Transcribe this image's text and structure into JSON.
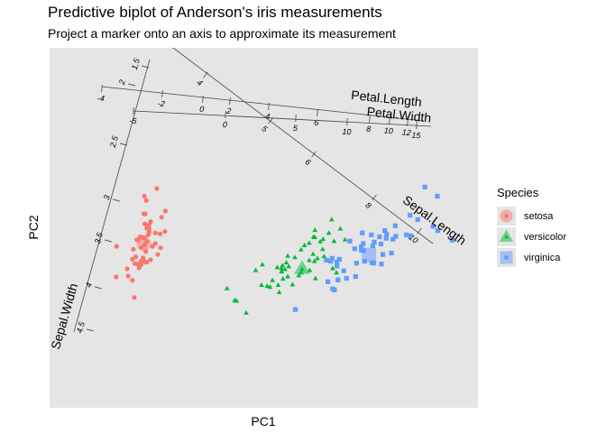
{
  "chart_data": {
    "type": "scatter",
    "title": "Predictive biplot of Anderson's iris measurements",
    "subtitle": "Project a marker onto an axis to approximate its measurement",
    "xlabel": "PC1",
    "ylabel": "PC2",
    "grid": false,
    "legend": {
      "title": "Species",
      "placement": "right",
      "entries": [
        {
          "name": "setosa",
          "color": "#F8766D",
          "shape": "circle"
        },
        {
          "name": "versicolor",
          "color": "#00BA38",
          "shape": "triangle"
        },
        {
          "name": "virginica",
          "color": "#619CFF",
          "shape": "square"
        }
      ]
    },
    "series": [
      {
        "name": "setosa",
        "color": "#F8766D",
        "shape": "circle",
        "mean": [
          -2.65,
          0.18
        ],
        "points": [
          [
            -2.68,
            0.32
          ],
          [
            -2.71,
            -0.18
          ],
          [
            -2.89,
            -0.14
          ],
          [
            -2.75,
            -0.32
          ],
          [
            -2.73,
            0.33
          ],
          [
            -2.28,
            0.74
          ],
          [
            -2.82,
            -0.09
          ],
          [
            -2.63,
            0.16
          ],
          [
            -2.89,
            -0.58
          ],
          [
            -2.67,
            -0.11
          ],
          [
            -2.51,
            0.65
          ],
          [
            -2.61,
            0.02
          ],
          [
            -2.79,
            -0.24
          ],
          [
            -3.23,
            -0.51
          ],
          [
            -2.64,
            1.18
          ],
          [
            -2.38,
            1.34
          ],
          [
            -2.62,
            0.81
          ],
          [
            -2.65,
            0.31
          ],
          [
            -2.2,
            0.87
          ],
          [
            -2.59,
            0.51
          ],
          [
            -2.31,
            0.39
          ],
          [
            -2.54,
            0.43
          ],
          [
            -3.22,
            0.13
          ],
          [
            -2.3,
            0.1
          ],
          [
            -2.36,
            -0.04
          ],
          [
            -2.51,
            -0.15
          ],
          [
            -2.47,
            0.13
          ],
          [
            -2.56,
            0.37
          ],
          [
            -2.64,
            0.31
          ],
          [
            -2.63,
            -0.19
          ],
          [
            -2.59,
            -0.2
          ],
          [
            -2.41,
            0.41
          ],
          [
            -2.65,
            0.81
          ],
          [
            -2.6,
            1.09
          ],
          [
            -2.67,
            -0.12
          ],
          [
            -2.87,
            0.07
          ],
          [
            -2.63,
            0.6
          ],
          [
            -2.8,
            0.27
          ],
          [
            -2.98,
            -0.49
          ],
          [
            -2.59,
            0.23
          ],
          [
            -2.77,
            0.26
          ],
          [
            -2.85,
            -0.94
          ],
          [
            -3,
            -0.34
          ],
          [
            -2.41,
            0.19
          ],
          [
            -2.21,
            0.44
          ],
          [
            -2.71,
            -0.25
          ],
          [
            -2.54,
            0.5
          ],
          [
            -2.84,
            -0.23
          ],
          [
            -2.54,
            0.58
          ],
          [
            -2.7,
            0.11
          ]
        ]
      },
      {
        "name": "versicolor",
        "color": "#00BA38",
        "shape": "triangle",
        "mean": [
          0.66,
          -0.33
        ],
        "points": [
          [
            1.28,
            0.69
          ],
          [
            0.93,
            0.32
          ],
          [
            1.46,
            0.5
          ],
          [
            0.18,
            -0.83
          ],
          [
            1.09,
            0.07
          ],
          [
            0.64,
            -0.42
          ],
          [
            1.1,
            0.28
          ],
          [
            -0.75,
            -1
          ],
          [
            1.04,
            0.23
          ],
          [
            -0.01,
            -0.72
          ],
          [
            -0.51,
            -1.26
          ],
          [
            0.51,
            -0.1
          ],
          [
            0.26,
            -0.55
          ],
          [
            0.98,
            -0.12
          ],
          [
            -0.17,
            -0.25
          ],
          [
            0.93,
            0.47
          ],
          [
            0.66,
            -0.35
          ],
          [
            0.23,
            -0.33
          ],
          [
            0.94,
            -0.54
          ],
          [
            0.04,
            -0.58
          ],
          [
            1.12,
            -0.08
          ],
          [
            0.36,
            -0.07
          ],
          [
            1.3,
            -0.33
          ],
          [
            0.92,
            -0.18
          ],
          [
            0.71,
            0.15
          ],
          [
            0.9,
            0.33
          ],
          [
            1.33,
            0.24
          ],
          [
            1.56,
            0.27
          ],
          [
            0.81,
            -0.16
          ],
          [
            -0.31,
            -0.37
          ],
          [
            -0.07,
            -0.7
          ],
          [
            -0.19,
            -0.68
          ],
          [
            0.14,
            -0.31
          ],
          [
            1.38,
            -0.42
          ],
          [
            0.59,
            -0.48
          ],
          [
            0.81,
            0.2
          ],
          [
            1.22,
            0.41
          ],
          [
            0.82,
            -0.37
          ],
          [
            0.25,
            -0.27
          ],
          [
            0.16,
            -0.68
          ],
          [
            0.46,
            -0.67
          ],
          [
            0.89,
            -0.03
          ],
          [
            0.23,
            -0.4
          ],
          [
            -0.71,
            -1.01
          ],
          [
            0.36,
            -0.5
          ],
          [
            0.33,
            -0.21
          ],
          [
            0.38,
            -0.29
          ],
          [
            0.64,
            0.06
          ],
          [
            -0.91,
            -0.75
          ],
          [
            0.3,
            -0.35
          ]
        ]
      },
      {
        "name": "virginica",
        "color": "#619CFF",
        "shape": "square",
        "mean": [
          2.06,
          -0.05
        ],
        "points": [
          [
            2.53,
            -0.01
          ],
          [
            1.41,
            -0.57
          ],
          [
            2.62,
            0.34
          ],
          [
            1.97,
            -0.18
          ],
          [
            2.35,
            -0.04
          ],
          [
            3.4,
            0.55
          ],
          [
            0.52,
            -1.19
          ],
          [
            2.93,
            0.35
          ],
          [
            2.32,
            -0.24
          ],
          [
            2.92,
            0.78
          ],
          [
            1.66,
            0.24
          ],
          [
            1.8,
            -0.22
          ],
          [
            2.17,
            0.22
          ],
          [
            1.34,
            -0.78
          ],
          [
            1.59,
            -0.54
          ],
          [
            1.9,
            0.12
          ],
          [
            1.95,
            0.04
          ],
          [
            3.49,
            1.18
          ],
          [
            3.8,
            0.26
          ],
          [
            1.3,
            -0.76
          ],
          [
            2.43,
            0.38
          ],
          [
            1.2,
            -0.61
          ],
          [
            3.5,
            0.46
          ],
          [
            1.39,
            -0.2
          ],
          [
            2.28,
            0.33
          ],
          [
            2.61,
            0.56
          ],
          [
            1.26,
            -0.18
          ],
          [
            1.29,
            -0.12
          ],
          [
            2.12,
            -0.21
          ],
          [
            2.39,
            0.46
          ],
          [
            2.84,
            0.37
          ],
          [
            3.23,
            1.37
          ],
          [
            2.16,
            -0.22
          ],
          [
            1.44,
            -0.14
          ],
          [
            1.78,
            -0.5
          ],
          [
            3.08,
            0.69
          ],
          [
            2.14,
            0.14
          ],
          [
            1.9,
            0.05
          ],
          [
            1.17,
            -0.16
          ],
          [
            2.11,
            0.37
          ],
          [
            2.31,
            0.18
          ],
          [
            1.92,
            0.41
          ],
          [
            1.41,
            -0.57
          ],
          [
            2.56,
            0.28
          ],
          [
            2.42,
            0.3
          ],
          [
            1.94,
            0.19
          ],
          [
            1.53,
            -0.38
          ],
          [
            1.76,
            0.08
          ],
          [
            1.9,
            0.12
          ],
          [
            1.39,
            -0.28
          ]
        ]
      }
    ],
    "biplot_axes": [
      {
        "name": "Sepal.Length",
        "ticks": [
          "4",
          "5",
          "6",
          "8",
          "10"
        ]
      },
      {
        "name": "Sepal.Width",
        "ticks": [
          "1.5",
          "2",
          "2.5",
          "3",
          "3.5",
          "4",
          "4.5"
        ]
      },
      {
        "name": "Petal.Length",
        "ticks": [
          "-4",
          "-2",
          "0",
          "2",
          "4",
          "6",
          "8",
          "10",
          "12"
        ]
      },
      {
        "name": "Petal.Width",
        "ticks": [
          "-5",
          "0",
          "5",
          "10",
          "15"
        ]
      }
    ]
  }
}
